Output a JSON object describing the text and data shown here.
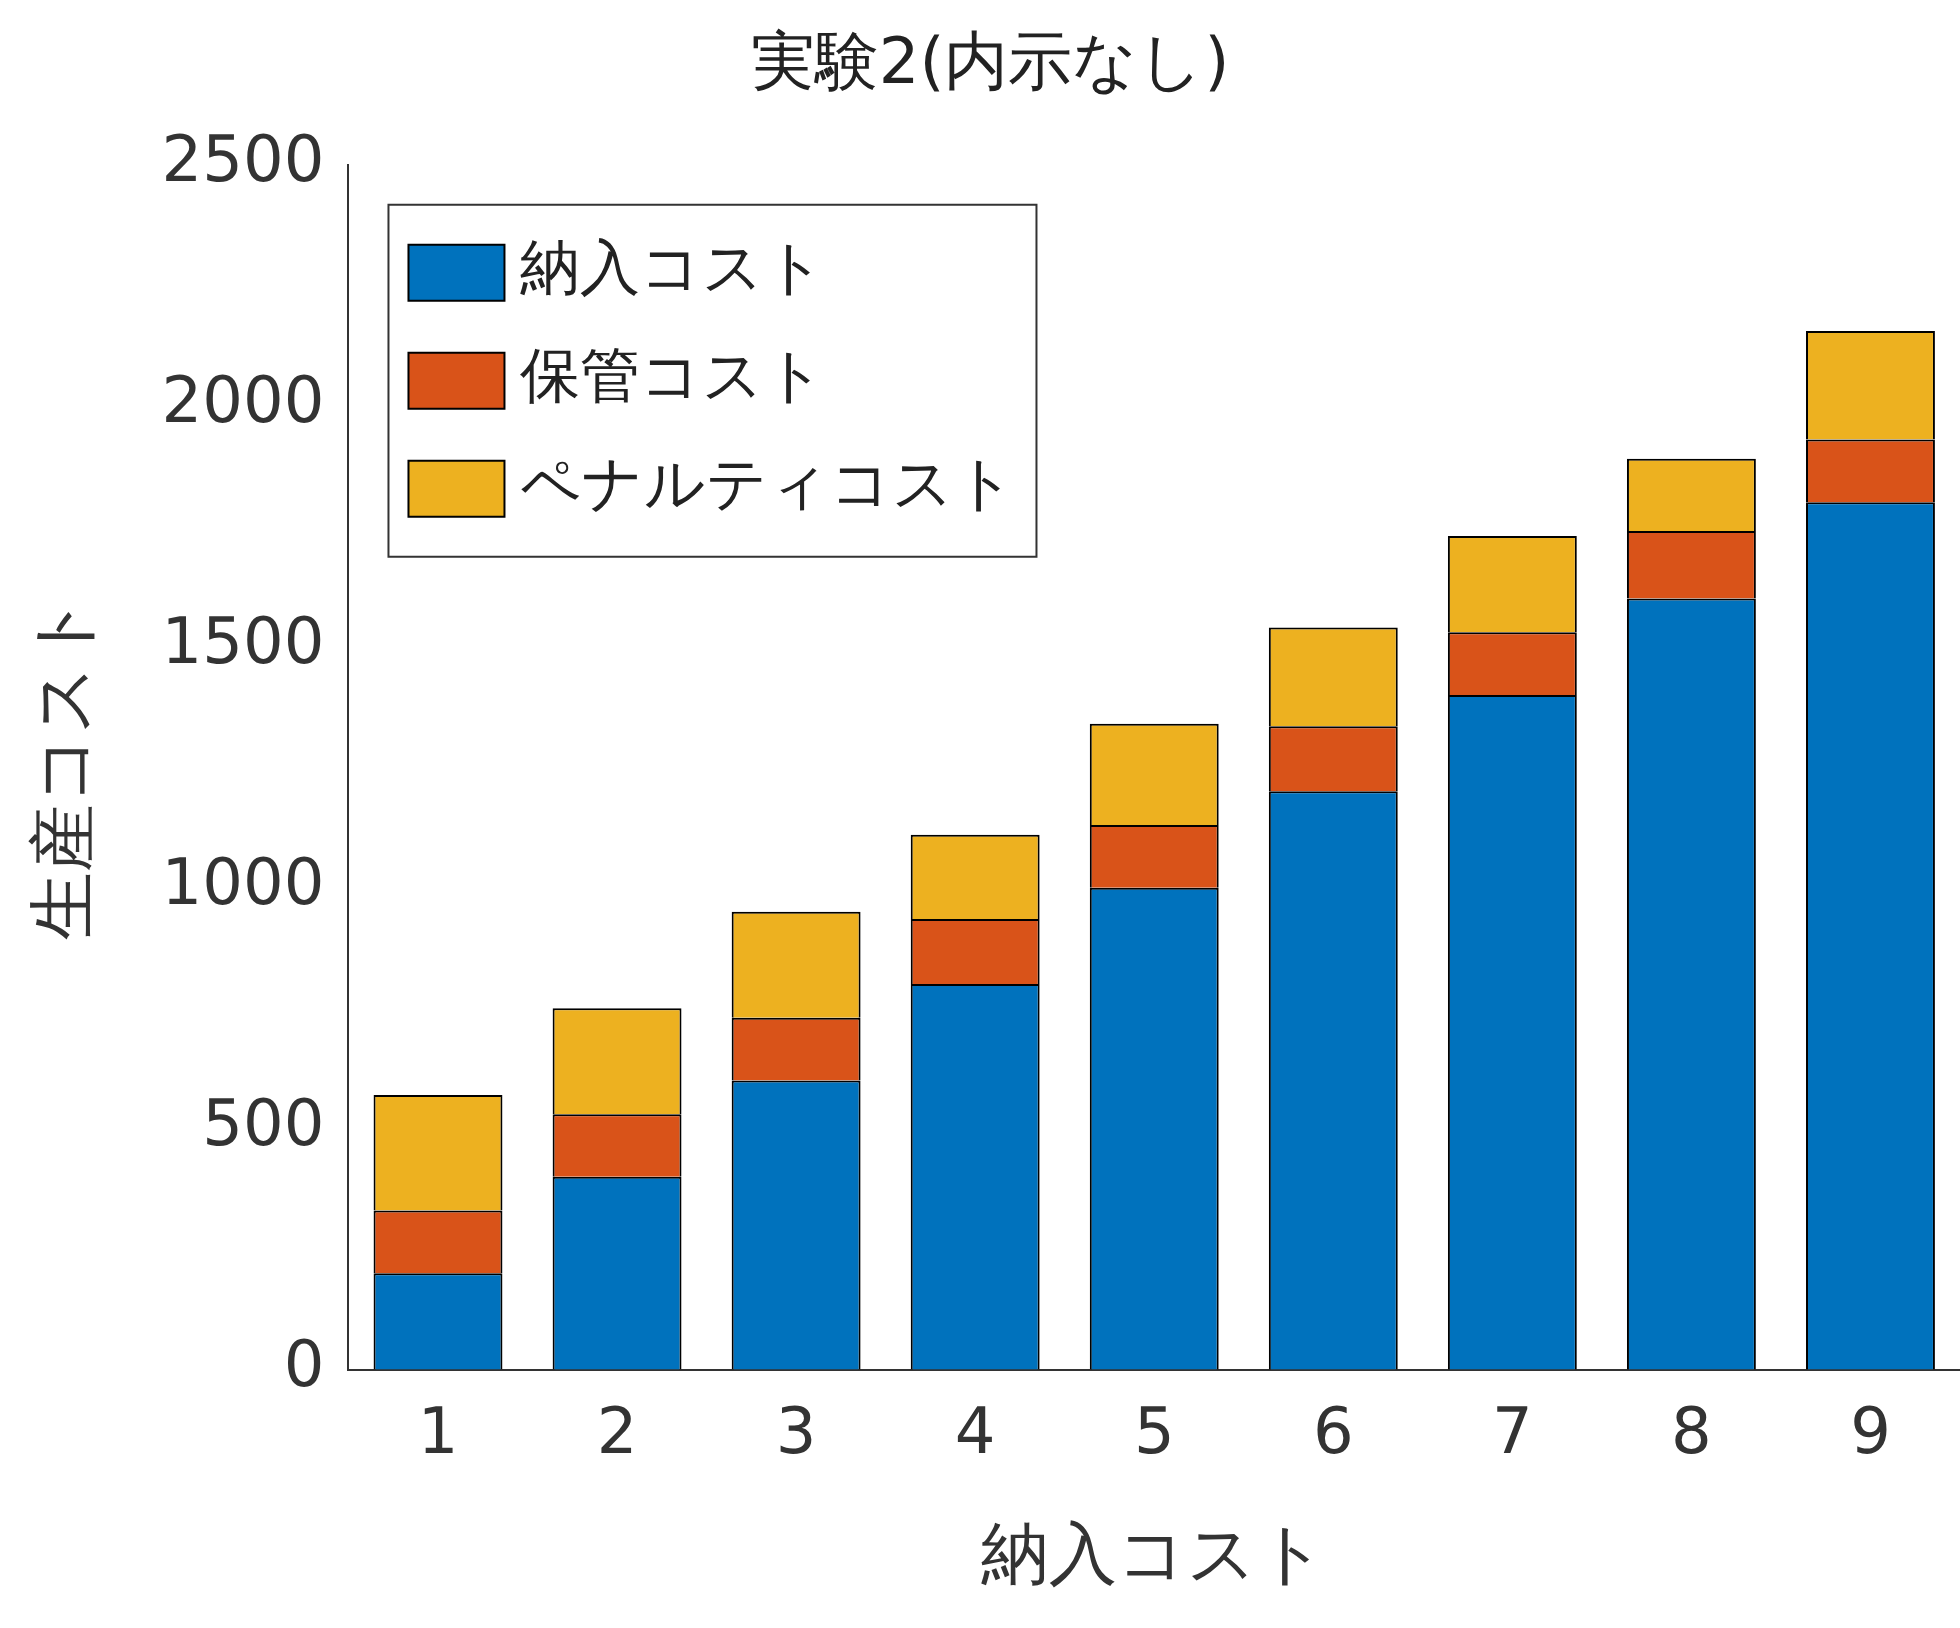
{
  "chart_data": {
    "type": "bar",
    "title": "実験2(内示なし)",
    "xlabel": "納入コスト",
    "ylabel": "生産コスト",
    "categories": [
      "1",
      "2",
      "3",
      "4",
      "5",
      "6",
      "7",
      "8",
      "9"
    ],
    "stacked": true,
    "legend": "top left",
    "grid": false,
    "series": [
      {
        "name": "納入コスト",
        "color": "#0072bd",
        "values": [
          200,
          400,
          600,
          800,
          1000,
          1200,
          1400,
          1600,
          1800
        ]
      },
      {
        "name": "保管コスト",
        "color": "#d95319",
        "values": [
          130,
          130,
          130,
          135,
          130,
          135,
          130,
          140,
          130
        ]
      },
      {
        "name": "ペナルティコスト",
        "color": "#edb120",
        "values": [
          240,
          220,
          220,
          175,
          210,
          205,
          200,
          150,
          225
        ]
      }
    ],
    "ylim": [
      0,
      2500
    ],
    "yticks": [
      0,
      500,
      1000,
      1500,
      2000,
      2500
    ]
  }
}
